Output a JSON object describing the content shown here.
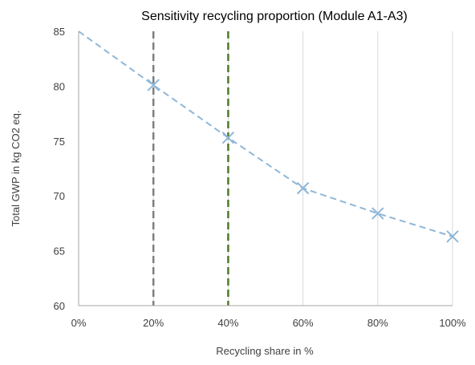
{
  "chart_data": {
    "type": "line",
    "title": "Sensitivity recycling proportion (Module A1-A3)",
    "xlabel": "Recycling share in %",
    "ylabel": "Total GWP in kg CO2 eq.",
    "x": [
      0,
      20,
      40,
      60,
      80,
      100
    ],
    "x_tick_labels": [
      "0%",
      "20%",
      "40%",
      "60%",
      "80%",
      "100%"
    ],
    "xlim": [
      0,
      100
    ],
    "ylim": [
      60,
      85
    ],
    "y_ticks": [
      60,
      65,
      70,
      75,
      80,
      85
    ],
    "series": [
      {
        "values": [
          85.0,
          80.1,
          75.3,
          70.7,
          68.4,
          66.3
        ],
        "color": "#8fb7d8",
        "line_style": "dashed",
        "marker": "x",
        "marker_shown_from_index": 1
      }
    ],
    "reference_lines": [
      {
        "x": 20,
        "color": "#7f7f7f",
        "style": "dashed"
      },
      {
        "x": 40,
        "color": "#4f7a28",
        "style": "dashed"
      }
    ],
    "grid": {
      "vertical": true,
      "horizontal": false
    },
    "legend": "none"
  }
}
